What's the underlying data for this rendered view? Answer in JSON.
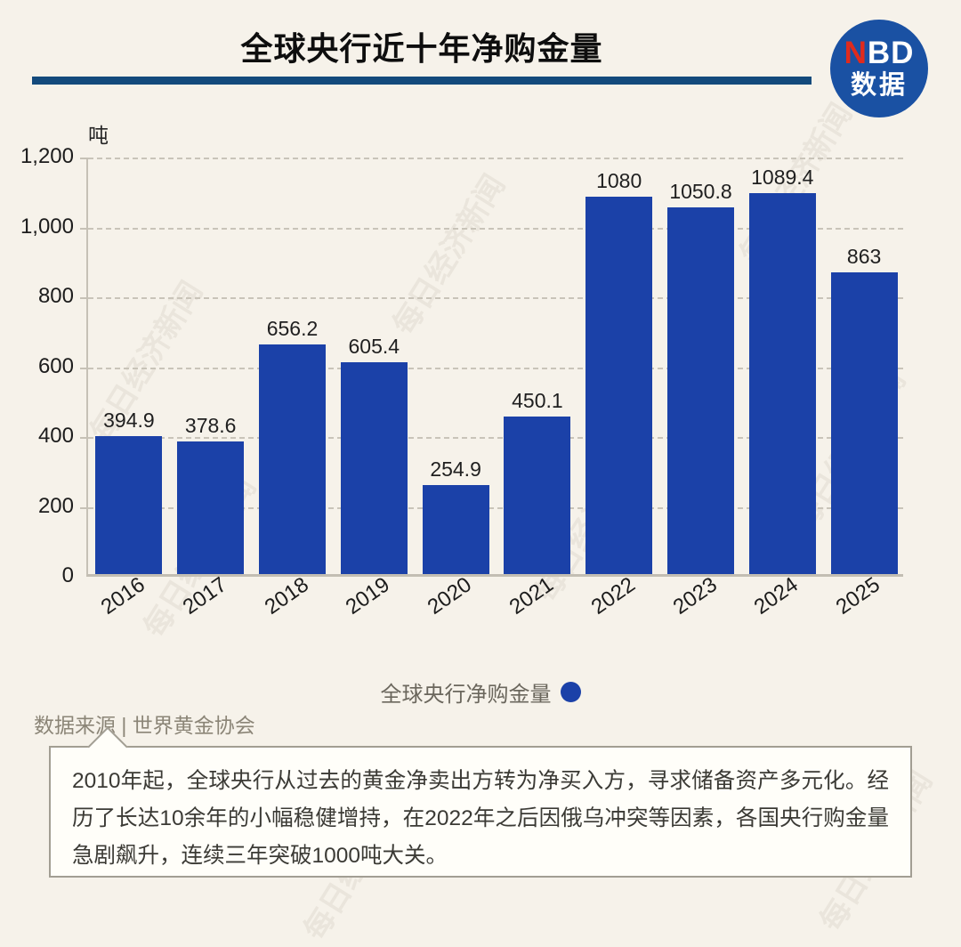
{
  "header": {
    "title": "全球央行近十年净购金量",
    "logo": {
      "n": "N",
      "bd": "BD",
      "caption": "数据"
    }
  },
  "chart_data": {
    "type": "bar",
    "title": "全球央行近十年净购金量",
    "unit_label": "吨",
    "categories": [
      "2016",
      "2017",
      "2018",
      "2019",
      "2020",
      "2021",
      "2022",
      "2023",
      "2024",
      "2025"
    ],
    "values": [
      394.9,
      378.6,
      656.2,
      605.4,
      254.9,
      450.1,
      1080,
      1050.8,
      1089.4,
      863
    ],
    "value_labels": [
      "394.9",
      "378.6",
      "656.2",
      "605.4",
      "254.9",
      "450.1",
      "1080",
      "1050.8",
      "1089.4",
      "863"
    ],
    "ylim": [
      0,
      1200
    ],
    "yticks": [
      {
        "v": 0,
        "label": "0"
      },
      {
        "v": 200,
        "label": "200"
      },
      {
        "v": 400,
        "label": "400"
      },
      {
        "v": 600,
        "label": "600"
      },
      {
        "v": 800,
        "label": "800"
      },
      {
        "v": 1000,
        "label": "1,000"
      },
      {
        "v": 1200,
        "label": "1,200"
      }
    ],
    "grid": true,
    "legend": {
      "label": "全球央行净购金量",
      "position": "bottom"
    },
    "bar_color": "#1b41a8"
  },
  "footer": {
    "source": "数据来源 | 世界黄金协会",
    "note": "2010年起，全球央行从过去的黄金净卖出方转为净买入方，寻求储备资产多元化。经历了长达10余年的小幅稳健增持，在2022年之后因俄乌冲突等因素，各国央行购金量急剧飙升，连续三年突破1000吨大关。"
  },
  "watermark": "每日经济新闻",
  "colors": {
    "background": "#f6f2ea",
    "bar": "#1b41a8",
    "divider": "#134a7c",
    "logo_circle": "#1a51a3",
    "logo_n": "#e02b1d"
  }
}
